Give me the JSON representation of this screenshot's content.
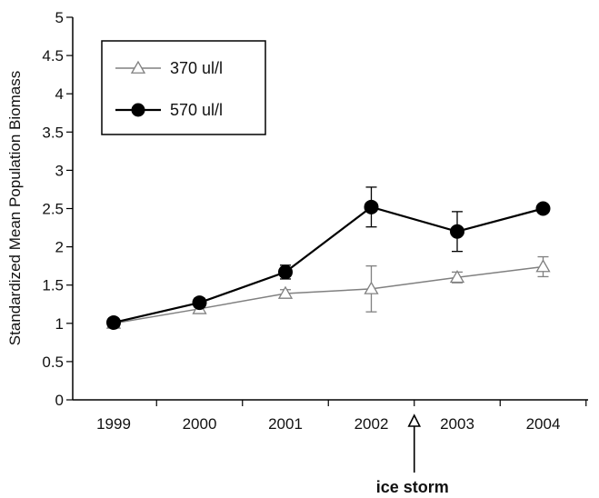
{
  "chart_data": {
    "type": "line",
    "title": "",
    "xlabel": "",
    "ylabel": "Standardized Mean Population Biomass",
    "categories": [
      "1999",
      "2000",
      "2001",
      "2002",
      "2003",
      "2004"
    ],
    "ylim": [
      0,
      5
    ],
    "yticks": [
      "0",
      "0.5",
      "1",
      "1.5",
      "2",
      "2.5",
      "3",
      "3.5",
      "4",
      "4.5",
      "5"
    ],
    "grid": false,
    "legend_position": "top-left",
    "series": [
      {
        "name": "370 ul/l",
        "marker": "open-triangle",
        "color": "#808080",
        "values": [
          1.0,
          1.19,
          1.39,
          1.45,
          1.6,
          1.74
        ],
        "errors": [
          0.04,
          0.05,
          0.05,
          0.3,
          0.07,
          0.13
        ]
      },
      {
        "name": "570 ul/l",
        "marker": "filled-circle",
        "color": "#000000",
        "values": [
          1.01,
          1.27,
          1.67,
          2.52,
          2.2,
          2.5
        ],
        "errors": [
          0.04,
          0.06,
          0.09,
          0.26,
          0.26,
          0.04
        ]
      }
    ],
    "annotation": {
      "text": "ice storm",
      "after_category": "2002",
      "marker": "open-triangle-arrow"
    }
  }
}
